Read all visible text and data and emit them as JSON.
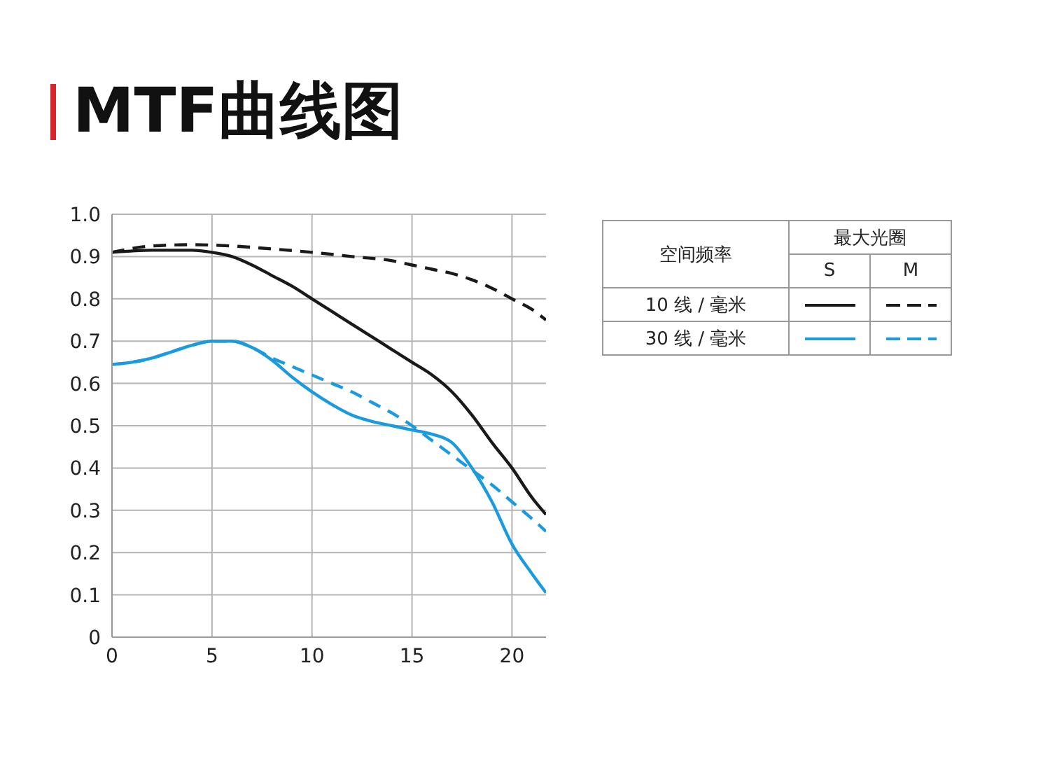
{
  "chart_data": {
    "type": "line",
    "title": "MTF曲线图",
    "xlim": [
      0,
      21.7
    ],
    "xticks": [
      0,
      5,
      10,
      15,
      20
    ],
    "ylim": [
      0,
      1.0
    ],
    "yticks": [
      0,
      0.1,
      0.2,
      0.3,
      0.4,
      0.5,
      0.6,
      0.7,
      0.8,
      0.9,
      {
        "value": 1.0,
        "label": "1.0"
      }
    ],
    "grid": true,
    "marker": "none",
    "annotations": [
      "空间频率",
      "最大光圈",
      "S",
      "M",
      "10 线 / 毫米",
      "30 线 / 毫米"
    ],
    "series": [
      {
        "color": "#1a1a1a",
        "line_style": "solid",
        "x": [
          0,
          2,
          4,
          5,
          6,
          7,
          8,
          9,
          10,
          11,
          12,
          13,
          14,
          15,
          16,
          17,
          18,
          19,
          20,
          21,
          21.7
        ],
        "values": [
          0.91,
          0.915,
          0.915,
          0.91,
          0.9,
          0.88,
          0.855,
          0.83,
          0.8,
          0.77,
          0.74,
          0.71,
          0.68,
          0.65,
          0.62,
          0.58,
          0.525,
          0.46,
          0.4,
          0.33,
          0.29
        ]
      },
      {
        "color": "#1a1a1a",
        "line_style": "dashed",
        "x": [
          0,
          2,
          4,
          6,
          8,
          10,
          12,
          14,
          15,
          16,
          17,
          18,
          19,
          20,
          21,
          21.7
        ],
        "values": [
          0.91,
          0.925,
          0.928,
          0.925,
          0.918,
          0.91,
          0.9,
          0.89,
          0.88,
          0.87,
          0.86,
          0.845,
          0.825,
          0.8,
          0.775,
          0.75
        ]
      },
      {
        "color": "#1a9be0",
        "line_style": "solid",
        "x": [
          0,
          1,
          2,
          3,
          4,
          5,
          6,
          7,
          8,
          9,
          10,
          11,
          12,
          13,
          14,
          15,
          16,
          17,
          18,
          19,
          20,
          21,
          21.7
        ],
        "values": [
          0.645,
          0.65,
          0.66,
          0.675,
          0.69,
          0.7,
          0.7,
          0.685,
          0.655,
          0.615,
          0.58,
          0.55,
          0.525,
          0.51,
          0.5,
          0.49,
          0.48,
          0.46,
          0.4,
          0.32,
          0.22,
          0.15,
          0.105
        ]
      },
      {
        "color": "#1a9be0",
        "line_style": "dashed",
        "x": [
          0,
          1,
          2,
          3,
          4,
          5,
          6,
          7,
          8,
          9,
          10,
          11,
          12,
          13,
          14,
          15,
          16,
          17,
          18,
          19,
          20,
          21,
          21.7
        ],
        "values": [
          0.645,
          0.65,
          0.66,
          0.675,
          0.69,
          0.7,
          0.7,
          0.685,
          0.66,
          0.64,
          0.62,
          0.6,
          0.58,
          0.555,
          0.53,
          0.5,
          0.465,
          0.43,
          0.395,
          0.36,
          0.32,
          0.28,
          0.25
        ]
      }
    ]
  }
}
